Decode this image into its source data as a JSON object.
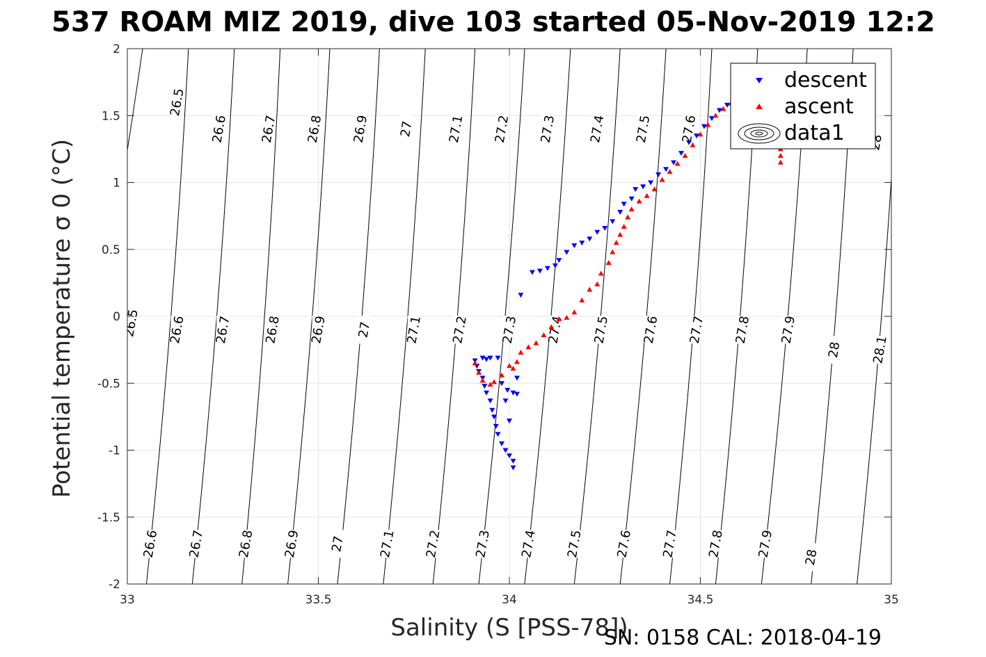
{
  "title": "537 ROAM MIZ 2019, dive 103 started 05-Nov-2019 12:2",
  "footer": "SN: 0158  CAL: 2018-04-19",
  "chart_data": {
    "type": "scatter",
    "xlabel": "Salinity (S [PSS-78])",
    "ylabel": "Potential temperature σ 0 (°C)",
    "xlim": [
      33,
      35
    ],
    "ylim": [
      -2,
      2
    ],
    "grid": true,
    "legend_position": "top-right",
    "x_ticks": [
      "33",
      "33.5",
      "34",
      "34.5",
      "35"
    ],
    "y_ticks": [
      "2",
      "1.5",
      "1",
      "0.5",
      "0",
      "-0.5",
      "-1",
      "-1.5",
      "-2"
    ],
    "legend": [
      "descent",
      "ascent",
      "data1"
    ],
    "colors": {
      "descent": "#0000ff",
      "ascent": "#ff0000"
    },
    "series": [
      {
        "name": "descent",
        "marker": "triangle-down",
        "points": [
          [
            34.01,
            -1.13
          ],
          [
            34.01,
            -1.08
          ],
          [
            34.0,
            -1.04
          ],
          [
            33.99,
            -1.0
          ],
          [
            33.98,
            -0.95
          ],
          [
            33.97,
            -0.88
          ],
          [
            33.965,
            -0.82
          ],
          [
            33.96,
            -0.75
          ],
          [
            33.955,
            -0.7
          ],
          [
            33.95,
            -0.63
          ],
          [
            33.94,
            -0.57
          ],
          [
            33.935,
            -0.52
          ],
          [
            33.93,
            -0.46
          ],
          [
            33.92,
            -0.41
          ],
          [
            33.915,
            -0.37
          ],
          [
            33.91,
            -0.33
          ],
          [
            33.93,
            -0.31
          ],
          [
            33.94,
            -0.32
          ],
          [
            33.95,
            -0.31
          ],
          [
            33.97,
            -0.31
          ],
          [
            33.98,
            -0.5
          ],
          [
            33.99,
            -0.63
          ],
          [
            34.0,
            -0.78
          ],
          [
            33.995,
            -0.55
          ],
          [
            34.01,
            -0.57
          ],
          [
            34.02,
            -0.46
          ],
          [
            34.02,
            -0.58
          ],
          [
            34.03,
            0.16
          ],
          [
            34.06,
            0.33
          ],
          [
            34.08,
            0.34
          ],
          [
            34.1,
            0.36
          ],
          [
            34.12,
            0.38
          ],
          [
            34.13,
            0.42
          ],
          [
            34.15,
            0.48
          ],
          [
            34.17,
            0.53
          ],
          [
            34.19,
            0.55
          ],
          [
            34.21,
            0.58
          ],
          [
            34.23,
            0.63
          ],
          [
            34.25,
            0.66
          ],
          [
            34.27,
            0.71
          ],
          [
            34.29,
            0.78
          ],
          [
            34.3,
            0.84
          ],
          [
            34.32,
            0.88
          ],
          [
            34.33,
            0.95
          ],
          [
            34.35,
            0.97
          ],
          [
            34.37,
            1.0
          ],
          [
            34.39,
            1.06
          ],
          [
            34.41,
            1.1
          ],
          [
            34.43,
            1.15
          ],
          [
            34.45,
            1.22
          ],
          [
            34.47,
            1.3
          ],
          [
            34.49,
            1.35
          ],
          [
            34.51,
            1.42
          ],
          [
            34.53,
            1.48
          ],
          [
            34.55,
            1.54
          ],
          [
            34.57,
            1.58
          ]
        ]
      },
      {
        "name": "ascent",
        "marker": "triangle-up",
        "points": [
          [
            34.71,
            1.15
          ],
          [
            34.71,
            1.2
          ],
          [
            34.71,
            1.25
          ],
          [
            33.91,
            -0.35
          ],
          [
            33.92,
            -0.42
          ],
          [
            33.93,
            -0.48
          ],
          [
            33.95,
            -0.51
          ],
          [
            33.96,
            -0.49
          ],
          [
            33.98,
            -0.44
          ],
          [
            34.0,
            -0.37
          ],
          [
            34.01,
            -0.39
          ],
          [
            34.02,
            -0.34
          ],
          [
            34.03,
            -0.27
          ],
          [
            34.05,
            -0.23
          ],
          [
            34.07,
            -0.2
          ],
          [
            34.09,
            -0.14
          ],
          [
            34.11,
            -0.08
          ],
          [
            34.13,
            -0.02
          ],
          [
            34.15,
            -0.01
          ],
          [
            34.17,
            0.03
          ],
          [
            34.19,
            0.12
          ],
          [
            34.21,
            0.2
          ],
          [
            34.23,
            0.24
          ],
          [
            34.24,
            0.32
          ],
          [
            34.26,
            0.4
          ],
          [
            34.27,
            0.48
          ],
          [
            34.28,
            0.55
          ],
          [
            34.29,
            0.61
          ],
          [
            34.3,
            0.67
          ],
          [
            34.31,
            0.74
          ],
          [
            34.32,
            0.8
          ],
          [
            34.34,
            0.86
          ],
          [
            34.36,
            0.9
          ],
          [
            34.38,
            0.95
          ],
          [
            34.4,
            1.02
          ],
          [
            34.42,
            1.08
          ],
          [
            34.44,
            1.14
          ],
          [
            34.46,
            1.2
          ],
          [
            34.48,
            1.28
          ],
          [
            34.5,
            1.36
          ],
          [
            34.52,
            1.43
          ],
          [
            34.54,
            1.5
          ],
          [
            34.56,
            1.55
          ],
          [
            34.58,
            1.59
          ]
        ]
      }
    ],
    "isopycnals": [
      {
        "label": "26.5",
        "xTop": 33.04,
        "xBottom": 32.8,
        "labelPositions": [
          [
            33.13,
            1.6
          ],
          [
            33.01,
            -0.05
          ]
        ]
      },
      {
        "label": "26.6",
        "xTop": 33.16,
        "xBottom": 33.05,
        "labelPositions": [
          [
            33.24,
            1.4
          ],
          [
            33.13,
            -0.1
          ],
          [
            33.06,
            -1.7
          ]
        ]
      },
      {
        "label": "26.7",
        "xTop": 33.28,
        "xBottom": 33.17,
        "labelPositions": [
          [
            33.37,
            1.4
          ],
          [
            33.25,
            -0.1
          ],
          [
            33.18,
            -1.7
          ]
        ]
      },
      {
        "label": "26.8",
        "xTop": 33.4,
        "xBottom": 33.3,
        "labelPositions": [
          [
            33.49,
            1.4
          ],
          [
            33.38,
            -0.1
          ],
          [
            33.31,
            -1.7
          ]
        ]
      },
      {
        "label": "26.9",
        "xTop": 33.53,
        "xBottom": 33.42,
        "labelPositions": [
          [
            33.61,
            1.4
          ],
          [
            33.5,
            -0.1
          ],
          [
            33.43,
            -1.7
          ]
        ]
      },
      {
        "label": "27",
        "xTop": 33.66,
        "xBottom": 33.55,
        "labelPositions": [
          [
            33.73,
            1.4
          ],
          [
            33.62,
            -0.1
          ],
          [
            33.55,
            -1.7
          ]
        ]
      },
      {
        "label": "27.1",
        "xTop": 33.78,
        "xBottom": 33.67,
        "labelPositions": [
          [
            33.86,
            1.4
          ],
          [
            33.75,
            -0.1
          ],
          [
            33.68,
            -1.7
          ]
        ]
      },
      {
        "label": "27.2",
        "xTop": 33.91,
        "xBottom": 33.8,
        "labelPositions": [
          [
            33.98,
            1.4
          ],
          [
            33.87,
            -0.1
          ],
          [
            33.8,
            -1.7
          ]
        ]
      },
      {
        "label": "27.3",
        "xTop": 34.04,
        "xBottom": 33.92,
        "labelPositions": [
          [
            34.1,
            1.4
          ],
          [
            34.0,
            -0.1
          ],
          [
            33.93,
            -1.7
          ]
        ]
      },
      {
        "label": "27.4",
        "xTop": 34.16,
        "xBottom": 34.04,
        "labelPositions": [
          [
            34.23,
            1.4
          ],
          [
            34.12,
            -0.1
          ],
          [
            34.05,
            -1.7
          ]
        ]
      },
      {
        "label": "27.5",
        "xTop": 34.29,
        "xBottom": 34.17,
        "labelPositions": [
          [
            34.35,
            1.4
          ],
          [
            34.24,
            -0.1
          ],
          [
            34.17,
            -1.7
          ]
        ]
      },
      {
        "label": "27.6",
        "xTop": 34.41,
        "xBottom": 34.29,
        "labelPositions": [
          [
            34.47,
            1.4
          ],
          [
            34.37,
            -0.1
          ],
          [
            34.3,
            -1.7
          ]
        ]
      },
      {
        "label": "27.7",
        "xTop": 34.53,
        "xBottom": 34.42,
        "labelPositions": [
          [
            34.49,
            -0.1
          ],
          [
            34.42,
            -1.7
          ]
        ]
      },
      {
        "label": "27.8",
        "xTop": 34.65,
        "xBottom": 34.54,
        "labelPositions": [
          [
            34.61,
            -0.1
          ],
          [
            34.54,
            -1.7
          ]
        ]
      },
      {
        "label": "27.9",
        "xTop": 34.78,
        "xBottom": 34.66,
        "labelPositions": [
          [
            34.73,
            -0.1
          ],
          [
            34.67,
            -1.7
          ]
        ]
      },
      {
        "label": "28",
        "xTop": 34.9,
        "xBottom": 34.79,
        "labelPositions": [
          [
            34.96,
            1.3
          ],
          [
            34.85,
            -0.25
          ],
          [
            34.79,
            -1.8
          ]
        ]
      },
      {
        "label": "28.1",
        "xTop": 35.02,
        "xBottom": 34.91,
        "labelPositions": [
          [
            34.97,
            -0.25
          ]
        ]
      }
    ]
  }
}
